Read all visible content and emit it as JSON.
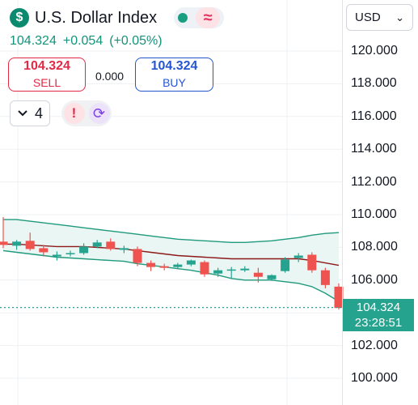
{
  "header": {
    "symbol_icon": "dollar-sign-icon",
    "symbol_name": "U.S. Dollar Index",
    "status_icon": "market-open-dot-icon",
    "approx_icon": "approx-sign-icon",
    "last_price": "104.324",
    "change": "+0.054",
    "change_pct": "(+0.05%)",
    "colors": {
      "up": "#14937b",
      "sell": "#e12a45",
      "buy": "#2456d2"
    }
  },
  "trade": {
    "sell_price": "104.324",
    "sell_label": "SELL",
    "spread": "0.000",
    "buy_price": "104.324",
    "buy_label": "BUY"
  },
  "toolbar": {
    "interval_icon": "chevron-down-icon",
    "interval_value": "4",
    "alert_icon": "exclamation-icon",
    "refresh_icon": "refresh-icon"
  },
  "currency": {
    "selected": "USD",
    "chevron": "⌄"
  },
  "price_label": {
    "price": "104.324",
    "countdown": "23:28:51"
  },
  "chart_data": {
    "type": "candlestick",
    "ylim": [
      99.0,
      122.5
    ],
    "y_ticks": [
      "120.000",
      "118.000",
      "116.000",
      "114.000",
      "112.000",
      "110.000",
      "108.000",
      "106.000",
      "104.000",
      "102.000",
      "100.000"
    ],
    "candles": [
      {
        "o": 108.35,
        "h": 109.85,
        "l": 107.95,
        "c": 108.15
      },
      {
        "o": 108.1,
        "h": 108.45,
        "l": 107.85,
        "c": 108.35
      },
      {
        "o": 108.4,
        "h": 108.9,
        "l": 107.8,
        "c": 107.9
      },
      {
        "o": 107.95,
        "h": 108.15,
        "l": 107.45,
        "c": 107.7
      },
      {
        "o": 107.45,
        "h": 107.75,
        "l": 107.2,
        "c": 107.55
      },
      {
        "o": 107.6,
        "h": 107.8,
        "l": 107.45,
        "c": 107.65
      },
      {
        "o": 107.65,
        "h": 108.25,
        "l": 107.55,
        "c": 108.05
      },
      {
        "o": 108.05,
        "h": 108.45,
        "l": 107.95,
        "c": 108.3
      },
      {
        "o": 108.35,
        "h": 108.55,
        "l": 107.8,
        "c": 107.9
      },
      {
        "o": 107.85,
        "h": 108.1,
        "l": 107.65,
        "c": 107.95
      },
      {
        "o": 107.9,
        "h": 108.05,
        "l": 106.85,
        "c": 107.05
      },
      {
        "o": 107.05,
        "h": 107.2,
        "l": 106.55,
        "c": 106.8
      },
      {
        "o": 106.85,
        "h": 107.0,
        "l": 106.6,
        "c": 106.75
      },
      {
        "o": 106.8,
        "h": 107.05,
        "l": 106.7,
        "c": 106.95
      },
      {
        "o": 106.95,
        "h": 107.25,
        "l": 106.85,
        "c": 107.2
      },
      {
        "o": 107.1,
        "h": 107.2,
        "l": 106.2,
        "c": 106.35
      },
      {
        "o": 106.4,
        "h": 106.75,
        "l": 106.2,
        "c": 106.6
      },
      {
        "o": 106.6,
        "h": 106.8,
        "l": 106.1,
        "c": 106.65
      },
      {
        "o": 106.6,
        "h": 106.85,
        "l": 106.5,
        "c": 106.7
      },
      {
        "o": 106.45,
        "h": 106.75,
        "l": 105.85,
        "c": 106.2
      },
      {
        "o": 106.05,
        "h": 106.35,
        "l": 105.95,
        "c": 106.3
      },
      {
        "o": 106.55,
        "h": 107.4,
        "l": 106.45,
        "c": 107.25
      },
      {
        "o": 107.35,
        "h": 107.65,
        "l": 107.1,
        "c": 107.5
      },
      {
        "o": 107.55,
        "h": 107.7,
        "l": 106.45,
        "c": 106.6
      },
      {
        "o": 106.6,
        "h": 106.75,
        "l": 105.5,
        "c": 105.7
      },
      {
        "o": 105.6,
        "h": 105.8,
        "l": 104.2,
        "c": 104.3
      }
    ],
    "bands": {
      "upper": [
        109.7,
        109.7,
        109.6,
        109.5,
        109.4,
        109.3,
        109.2,
        109.1,
        109.0,
        108.9,
        108.8,
        108.7,
        108.6,
        108.5,
        108.45,
        108.4,
        108.35,
        108.3,
        108.3,
        108.35,
        108.4,
        108.5,
        108.6,
        108.75,
        108.85,
        108.9
      ],
      "middle": [
        108.2,
        108.2,
        108.15,
        108.1,
        108.05,
        108.05,
        108.05,
        108.0,
        107.95,
        107.9,
        107.8,
        107.7,
        107.6,
        107.5,
        107.45,
        107.4,
        107.35,
        107.3,
        107.3,
        107.3,
        107.3,
        107.3,
        107.3,
        107.2,
        107.05,
        106.9
      ],
      "lower": [
        107.8,
        107.7,
        107.6,
        107.5,
        107.4,
        107.35,
        107.3,
        107.25,
        107.2,
        107.15,
        107.0,
        106.9,
        106.8,
        106.7,
        106.6,
        106.45,
        106.3,
        106.1,
        106.0,
        106.0,
        106.0,
        105.9,
        105.8,
        105.6,
        105.2,
        104.7
      ]
    },
    "last_price": 104.324,
    "colors": {
      "up": "#26a38f",
      "down": "#ef5350",
      "band": "#1f9a7d",
      "band_fill": "#eaf6f4",
      "basis": "#8b1a1a",
      "grid": "#eef0f3"
    }
  }
}
